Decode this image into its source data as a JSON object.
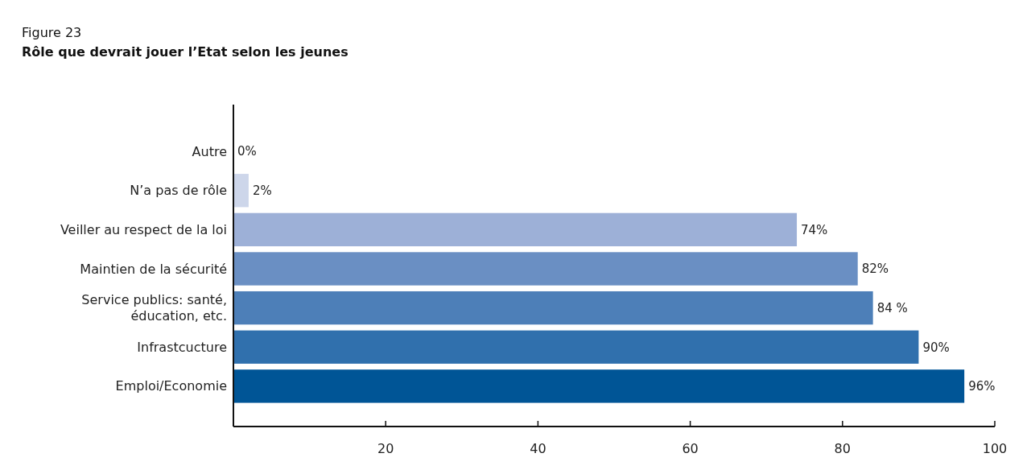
{
  "chart_data": {
    "type": "bar",
    "orientation": "horizontal",
    "title": "Rôle que devrait jouer l’Etat selon les jeunes",
    "annotations": [
      "Figure 23"
    ],
    "categories": [
      "Autre",
      "N’a pas de rôle",
      "Veiller au respect de la loi",
      "Maintien de la sécurité",
      "Service publics: santé,\néducation, etc.",
      "Infrastcucture",
      "Emploi/Economie"
    ],
    "values": [
      0,
      2,
      74,
      82,
      84,
      90,
      96
    ],
    "colors": [
      "#cdd6ea",
      "#cdd6ea",
      "#9db0d7",
      "#6a8fc3",
      "#4d7fb8",
      "#3070ad",
      "#005596"
    ],
    "value_labels": [
      "0%",
      "2%",
      "74%",
      "82%",
      "84 %",
      "90%",
      "96%"
    ],
    "xlim": [
      0,
      100
    ],
    "xticks": [
      20,
      40,
      60,
      80,
      100
    ],
    "grid": false,
    "legend": false
  }
}
